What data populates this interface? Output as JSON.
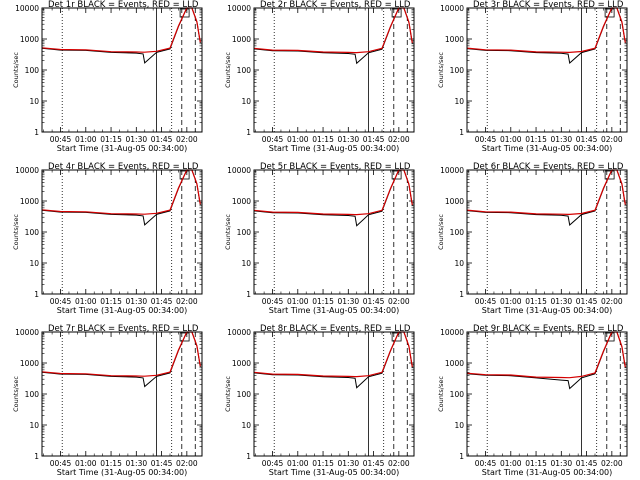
{
  "figure": {
    "background": "#ffffff",
    "colors": {
      "events": "#000000",
      "lld": "#d40000",
      "axes": "#000000"
    },
    "xlabel": "Start Time (31-Aug-05 00:34:00)",
    "ylabel": "Counts/sec",
    "x_tick_labels": [
      "00:45",
      "01:00",
      "01:15",
      "01:30",
      "01:45",
      "02:00"
    ],
    "y_tick_labels": [
      "1",
      "10",
      "100",
      "1000",
      "10000"
    ]
  },
  "chart_data": [
    {
      "type": "line",
      "title": "Det 1r  BLACK = Events, RED = LLD",
      "xlabel": "Start Time (31-Aug-05 00:34:00)",
      "ylabel": "Counts/sec",
      "x_tick_labels": [
        "00:45",
        "01:00",
        "01:15",
        "01:30",
        "01:45",
        "02:00"
      ],
      "y_scale": "log",
      "ylim": [
        1,
        10000
      ],
      "series": [
        {
          "color": "#000000",
          "x": [
            "00:34",
            "00:45",
            "01:00",
            "01:15",
            "01:30",
            "01:34",
            "01:35",
            "01:42",
            "01:50",
            "01:55",
            "02:00",
            "02:03",
            "02:06",
            "02:08"
          ],
          "y": [
            500,
            440,
            430,
            370,
            350,
            330,
            170,
            370,
            480,
            2500,
            11000,
            13000,
            3500,
            750
          ]
        },
        {
          "color": "#d40000",
          "x": [
            "00:34",
            "00:45",
            "01:00",
            "01:15",
            "01:30",
            "01:34",
            "01:35",
            "01:42",
            "01:50",
            "01:55",
            "02:00",
            "02:03",
            "02:06",
            "02:08"
          ],
          "y": [
            520,
            460,
            450,
            390,
            380,
            375,
            375,
            400,
            510,
            2600,
            11500,
            13500,
            3600,
            780
          ]
        }
      ],
      "vertical_lines": [
        {
          "x": "00:46",
          "style": "dotted"
        },
        {
          "x": "01:42",
          "style": "solid"
        },
        {
          "x": "01:51",
          "style": "dotted"
        },
        {
          "x": "01:57",
          "style": "dashed"
        },
        {
          "x": "02:05",
          "style": "dashed"
        }
      ],
      "grid": false
    },
    {
      "type": "line",
      "title": "Det 2r  BLACK = Events, RED = LLD",
      "xlabel": "Start Time (31-Aug-05 00:34:00)",
      "ylabel": "Counts/sec",
      "x_tick_labels": [
        "00:45",
        "01:00",
        "01:15",
        "01:30",
        "01:45",
        "02:00"
      ],
      "y_scale": "log",
      "ylim": [
        1,
        10000
      ],
      "series": [
        {
          "color": "#000000",
          "x": [
            "00:34",
            "00:45",
            "01:00",
            "01:15",
            "01:30",
            "01:34",
            "01:35",
            "01:42",
            "01:50",
            "01:55",
            "02:00",
            "02:03",
            "02:06",
            "02:08"
          ],
          "y": [
            480,
            420,
            410,
            360,
            340,
            320,
            165,
            360,
            470,
            2400,
            10500,
            12500,
            3400,
            720
          ]
        },
        {
          "color": "#d40000",
          "x": [
            "00:34",
            "00:45",
            "01:00",
            "01:15",
            "01:30",
            "01:34",
            "01:35",
            "01:42",
            "01:50",
            "01:55",
            "02:00",
            "02:03",
            "02:06",
            "02:08"
          ],
          "y": [
            500,
            440,
            430,
            380,
            370,
            365,
            365,
            390,
            500,
            2500,
            11000,
            13000,
            3500,
            750
          ]
        }
      ],
      "vertical_lines": [
        {
          "x": "00:46",
          "style": "dotted"
        },
        {
          "x": "01:42",
          "style": "solid"
        },
        {
          "x": "01:51",
          "style": "dotted"
        },
        {
          "x": "01:57",
          "style": "dashed"
        },
        {
          "x": "02:05",
          "style": "dashed"
        }
      ],
      "grid": false
    },
    {
      "type": "line",
      "title": "Det 3r  BLACK = Events, RED = LLD",
      "xlabel": "Start Time (31-Aug-05 00:34:00)",
      "ylabel": "Counts/sec",
      "x_tick_labels": [
        "00:45",
        "01:00",
        "01:15",
        "01:30",
        "01:45",
        "02:00"
      ],
      "y_scale": "log",
      "ylim": [
        1,
        10000
      ],
      "series": [
        {
          "color": "#000000",
          "x": [
            "00:34",
            "00:45",
            "01:00",
            "01:15",
            "01:30",
            "01:34",
            "01:35",
            "01:42",
            "01:50",
            "01:55",
            "02:00",
            "02:03",
            "02:06",
            "02:08"
          ],
          "y": [
            490,
            430,
            420,
            365,
            345,
            325,
            168,
            365,
            475,
            2450,
            10800,
            12800,
            3450,
            735
          ]
        },
        {
          "color": "#d40000",
          "x": [
            "00:34",
            "00:45",
            "01:00",
            "01:15",
            "01:30",
            "01:34",
            "01:35",
            "01:42",
            "01:50",
            "01:55",
            "02:00",
            "02:03",
            "02:06",
            "02:08"
          ],
          "y": [
            510,
            450,
            440,
            385,
            375,
            370,
            370,
            395,
            505,
            2550,
            11200,
            13200,
            3550,
            765
          ]
        }
      ],
      "vertical_lines": [
        {
          "x": "00:46",
          "style": "dotted"
        },
        {
          "x": "01:42",
          "style": "solid"
        },
        {
          "x": "01:51",
          "style": "dotted"
        },
        {
          "x": "01:57",
          "style": "dashed"
        },
        {
          "x": "02:05",
          "style": "dashed"
        }
      ],
      "grid": false
    },
    {
      "type": "line",
      "title": "Det 4r  BLACK = Events, RED = LLD",
      "xlabel": "Start Time (31-Aug-05 00:34:00)",
      "ylabel": "Counts/sec",
      "x_tick_labels": [
        "00:45",
        "01:00",
        "01:15",
        "01:30",
        "01:45",
        "02:00"
      ],
      "y_scale": "log",
      "ylim": [
        1,
        10000
      ],
      "series": [
        {
          "color": "#000000",
          "x": [
            "00:34",
            "00:45",
            "01:00",
            "01:15",
            "01:30",
            "01:34",
            "01:35",
            "01:42",
            "01:50",
            "01:55",
            "02:00",
            "02:03",
            "02:06",
            "02:08"
          ],
          "y": [
            500,
            440,
            430,
            370,
            350,
            330,
            170,
            370,
            480,
            2500,
            11000,
            13000,
            3500,
            750
          ]
        },
        {
          "color": "#d40000",
          "x": [
            "00:34",
            "00:45",
            "01:00",
            "01:15",
            "01:30",
            "01:34",
            "01:35",
            "01:42",
            "01:50",
            "01:55",
            "02:00",
            "02:03",
            "02:06",
            "02:08"
          ],
          "y": [
            520,
            460,
            450,
            390,
            380,
            375,
            375,
            400,
            510,
            2600,
            11500,
            13500,
            3600,
            780
          ]
        }
      ],
      "vertical_lines": [
        {
          "x": "00:46",
          "style": "dotted"
        },
        {
          "x": "01:42",
          "style": "solid"
        },
        {
          "x": "01:51",
          "style": "dotted"
        },
        {
          "x": "01:57",
          "style": "dashed"
        },
        {
          "x": "02:05",
          "style": "dashed"
        }
      ],
      "grid": false
    },
    {
      "type": "line",
      "title": "Det 5r  BLACK = Events, RED = LLD",
      "xlabel": "Start Time (31-Aug-05 00:34:00)",
      "ylabel": "Counts/sec",
      "x_tick_labels": [
        "00:45",
        "01:00",
        "01:15",
        "01:30",
        "01:45",
        "02:00"
      ],
      "y_scale": "log",
      "ylim": [
        1,
        10000
      ],
      "series": [
        {
          "color": "#000000",
          "x": [
            "00:34",
            "00:45",
            "01:00",
            "01:15",
            "01:30",
            "01:34",
            "01:35",
            "01:42",
            "01:50",
            "01:55",
            "02:00",
            "02:03",
            "02:06",
            "02:08"
          ],
          "y": [
            480,
            420,
            410,
            360,
            340,
            320,
            160,
            360,
            470,
            2400,
            10500,
            12500,
            3400,
            720
          ]
        },
        {
          "color": "#d40000",
          "x": [
            "00:34",
            "00:45",
            "01:00",
            "01:15",
            "01:30",
            "01:34",
            "01:35",
            "01:42",
            "01:50",
            "01:55",
            "02:00",
            "02:03",
            "02:06",
            "02:08"
          ],
          "y": [
            500,
            440,
            430,
            380,
            370,
            365,
            365,
            390,
            500,
            2500,
            11000,
            13000,
            3500,
            750
          ]
        }
      ],
      "vertical_lines": [
        {
          "x": "00:46",
          "style": "dotted"
        },
        {
          "x": "01:42",
          "style": "solid"
        },
        {
          "x": "01:51",
          "style": "dotted"
        },
        {
          "x": "01:57",
          "style": "dashed"
        },
        {
          "x": "02:05",
          "style": "dashed"
        }
      ],
      "grid": false
    },
    {
      "type": "line",
      "title": "Det 6r  BLACK = Events, RED = LLD",
      "xlabel": "Start Time (31-Aug-05 00:34:00)",
      "ylabel": "Counts/sec",
      "x_tick_labels": [
        "00:45",
        "01:00",
        "01:15",
        "01:30",
        "01:45",
        "02:00"
      ],
      "y_scale": "log",
      "ylim": [
        1,
        10000
      ],
      "series": [
        {
          "color": "#000000",
          "x": [
            "00:34",
            "00:45",
            "01:00",
            "01:15",
            "01:30",
            "01:34",
            "01:35",
            "01:42",
            "01:50",
            "01:55",
            "02:00",
            "02:03",
            "02:06",
            "02:08"
          ],
          "y": [
            490,
            430,
            420,
            365,
            345,
            325,
            168,
            365,
            475,
            2450,
            10800,
            12800,
            3450,
            735
          ]
        },
        {
          "color": "#d40000",
          "x": [
            "00:34",
            "00:45",
            "01:00",
            "01:15",
            "01:30",
            "01:34",
            "01:35",
            "01:42",
            "01:50",
            "01:55",
            "02:00",
            "02:03",
            "02:06",
            "02:08"
          ],
          "y": [
            510,
            450,
            440,
            385,
            375,
            370,
            370,
            395,
            505,
            2550,
            11200,
            13200,
            3550,
            765
          ]
        }
      ],
      "vertical_lines": [
        {
          "x": "00:46",
          "style": "dotted"
        },
        {
          "x": "01:42",
          "style": "solid"
        },
        {
          "x": "01:51",
          "style": "dotted"
        },
        {
          "x": "01:57",
          "style": "dashed"
        },
        {
          "x": "02:05",
          "style": "dashed"
        }
      ],
      "grid": false
    },
    {
      "type": "line",
      "title": "Det 7r  BLACK = Events, RED = LLD",
      "xlabel": "Start Time (31-Aug-05 00:34:00)",
      "ylabel": "Counts/sec",
      "x_tick_labels": [
        "00:45",
        "01:00",
        "01:15",
        "01:30",
        "01:45",
        "02:00"
      ],
      "y_scale": "log",
      "ylim": [
        1,
        10000
      ],
      "series": [
        {
          "color": "#000000",
          "x": [
            "00:34",
            "00:45",
            "01:00",
            "01:15",
            "01:30",
            "01:34",
            "01:35",
            "01:42",
            "01:50",
            "01:55",
            "02:00",
            "02:03",
            "02:06",
            "02:08"
          ],
          "y": [
            500,
            440,
            430,
            370,
            350,
            330,
            175,
            370,
            480,
            2500,
            11000,
            13000,
            3500,
            750
          ]
        },
        {
          "color": "#d40000",
          "x": [
            "00:34",
            "00:45",
            "01:00",
            "01:15",
            "01:30",
            "01:34",
            "01:35",
            "01:42",
            "01:50",
            "01:55",
            "02:00",
            "02:03",
            "02:06",
            "02:08"
          ],
          "y": [
            520,
            460,
            450,
            390,
            380,
            375,
            375,
            400,
            510,
            2600,
            11500,
            13500,
            3600,
            780
          ]
        }
      ],
      "vertical_lines": [
        {
          "x": "00:46",
          "style": "dotted"
        },
        {
          "x": "01:42",
          "style": "solid"
        },
        {
          "x": "01:51",
          "style": "dotted"
        },
        {
          "x": "01:57",
          "style": "dashed"
        },
        {
          "x": "02:05",
          "style": "dashed"
        }
      ],
      "grid": false
    },
    {
      "type": "line",
      "title": "Det 8r  BLACK = Events, RED = LLD",
      "xlabel": "Start Time (31-Aug-05 00:34:00)",
      "ylabel": "Counts/sec",
      "x_tick_labels": [
        "00:45",
        "01:00",
        "01:15",
        "01:30",
        "01:45",
        "02:00"
      ],
      "y_scale": "log",
      "ylim": [
        1,
        10000
      ],
      "series": [
        {
          "color": "#000000",
          "x": [
            "00:34",
            "00:45",
            "01:00",
            "01:15",
            "01:30",
            "01:34",
            "01:35",
            "01:42",
            "01:50",
            "01:55",
            "02:00",
            "02:03",
            "02:06",
            "02:08"
          ],
          "y": [
            480,
            420,
            410,
            360,
            340,
            320,
            160,
            360,
            470,
            2400,
            10500,
            12500,
            3400,
            720
          ]
        },
        {
          "color": "#d40000",
          "x": [
            "00:34",
            "00:45",
            "01:00",
            "01:15",
            "01:30",
            "01:34",
            "01:35",
            "01:42",
            "01:50",
            "01:55",
            "02:00",
            "02:03",
            "02:06",
            "02:08"
          ],
          "y": [
            500,
            440,
            430,
            380,
            370,
            365,
            365,
            390,
            500,
            2500,
            11000,
            13000,
            3500,
            750
          ]
        }
      ],
      "vertical_lines": [
        {
          "x": "00:46",
          "style": "dotted"
        },
        {
          "x": "01:42",
          "style": "solid"
        },
        {
          "x": "01:51",
          "style": "dotted"
        },
        {
          "x": "01:57",
          "style": "dashed"
        },
        {
          "x": "02:05",
          "style": "dashed"
        }
      ],
      "grid": false
    },
    {
      "type": "line",
      "title": "Det 9r  BLACK = Events, RED = LLD",
      "xlabel": "Start Time (31-Aug-05 00:34:00)",
      "ylabel": "Counts/sec",
      "x_tick_labels": [
        "00:45",
        "01:00",
        "01:15",
        "01:30",
        "01:45",
        "02:00"
      ],
      "y_scale": "log",
      "ylim": [
        1,
        10000
      ],
      "series": [
        {
          "color": "#000000",
          "x": [
            "00:34",
            "00:45",
            "01:00",
            "01:15",
            "01:30",
            "01:34",
            "01:35",
            "01:42",
            "01:50",
            "01:55",
            "02:00",
            "02:03",
            "02:06",
            "02:08"
          ],
          "y": [
            450,
            400,
            390,
            330,
            280,
            270,
            150,
            330,
            450,
            2300,
            10000,
            12000,
            3300,
            700
          ]
        },
        {
          "color": "#d40000",
          "x": [
            "00:34",
            "00:45",
            "01:00",
            "01:15",
            "01:30",
            "01:34",
            "01:35",
            "01:42",
            "01:50",
            "01:55",
            "02:00",
            "02:03",
            "02:06",
            "02:08"
          ],
          "y": [
            470,
            420,
            410,
            350,
            340,
            335,
            335,
            370,
            480,
            2400,
            10500,
            12500,
            3400,
            730
          ]
        }
      ],
      "vertical_lines": [
        {
          "x": "00:46",
          "style": "dotted"
        },
        {
          "x": "01:42",
          "style": "solid"
        },
        {
          "x": "01:51",
          "style": "dotted"
        },
        {
          "x": "01:57",
          "style": "dashed"
        },
        {
          "x": "02:05",
          "style": "dashed"
        }
      ],
      "grid": false
    }
  ]
}
